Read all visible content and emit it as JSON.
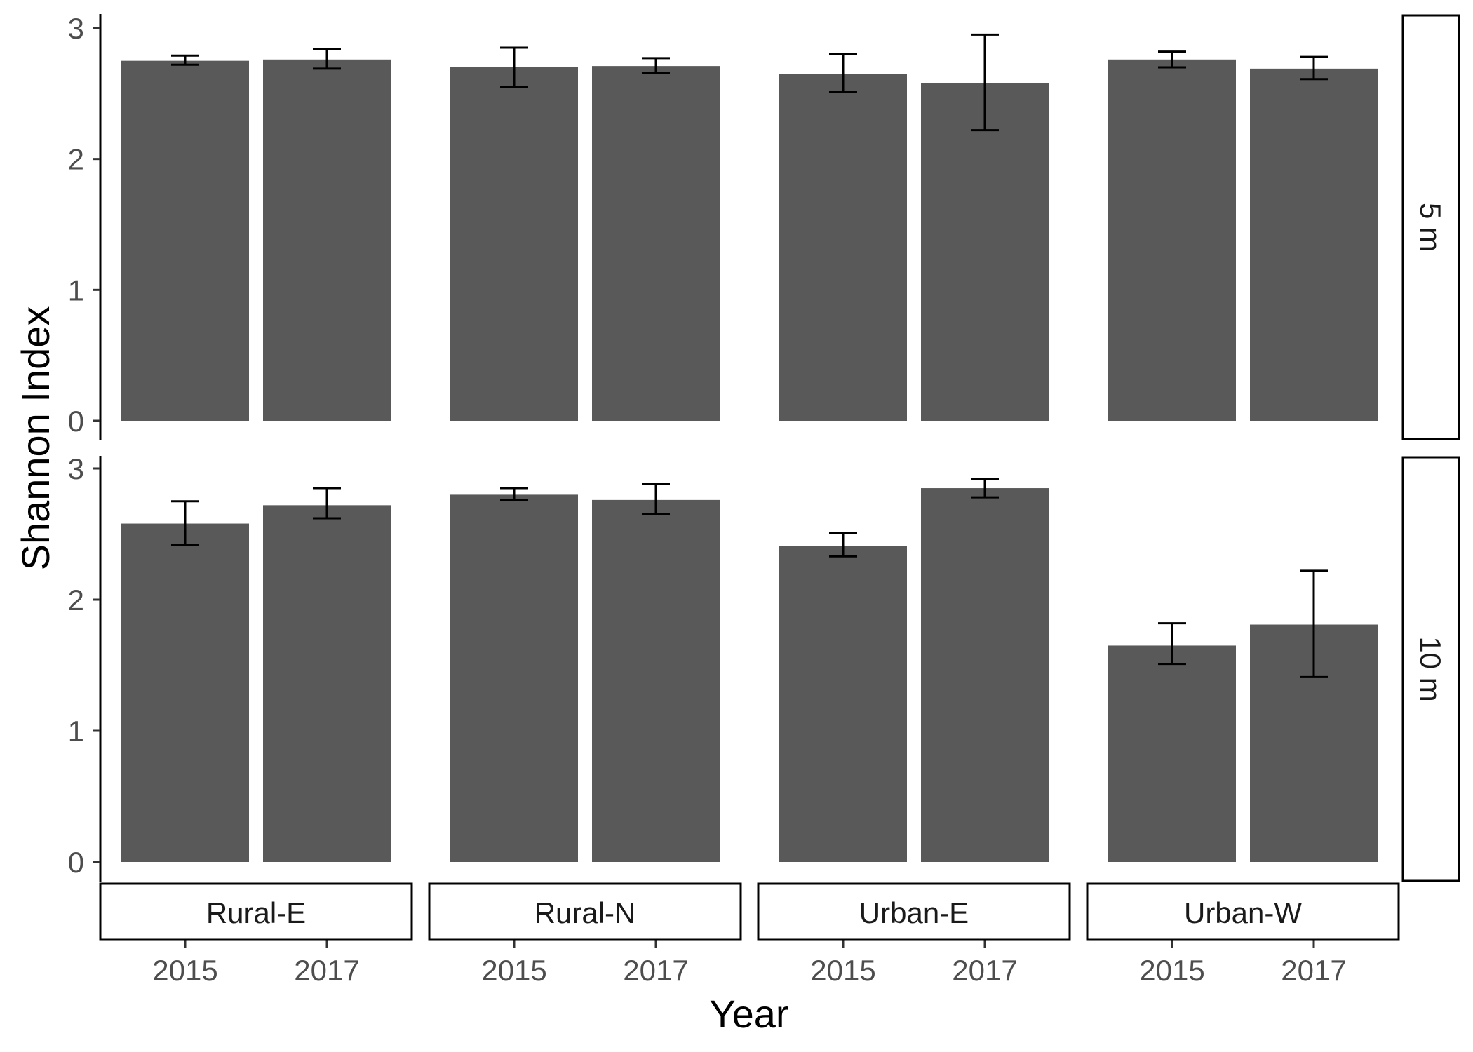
{
  "chart_data": {
    "type": "bar",
    "xlabel": "Year",
    "ylabel": "Shannon Index",
    "ylim": [
      0,
      3
    ],
    "yticks": [
      "0",
      "1",
      "2",
      "3"
    ],
    "grid": false,
    "facets": {
      "columns": [
        "Rural-E",
        "Rural-N",
        "Urban-E",
        "Urban-W"
      ],
      "rows": [
        "5 m",
        "10 m"
      ]
    },
    "categories": [
      "2015",
      "2017"
    ],
    "bar_color": "#595959",
    "error_bar_color": "#000000",
    "panels": [
      {
        "row": "5 m",
        "col": "Rural-E",
        "values": [
          2.75,
          2.76
        ],
        "error_low": [
          2.72,
          2.69
        ],
        "error_high": [
          2.79,
          2.84
        ]
      },
      {
        "row": "5 m",
        "col": "Rural-N",
        "values": [
          2.7,
          2.71
        ],
        "error_low": [
          2.55,
          2.66
        ],
        "error_high": [
          2.85,
          2.77
        ]
      },
      {
        "row": "5 m",
        "col": "Urban-E",
        "values": [
          2.65,
          2.58
        ],
        "error_low": [
          2.51,
          2.22
        ],
        "error_high": [
          2.8,
          2.95
        ]
      },
      {
        "row": "5 m",
        "col": "Urban-W",
        "values": [
          2.76,
          2.69
        ],
        "error_low": [
          2.7,
          2.61
        ],
        "error_high": [
          2.82,
          2.78
        ]
      },
      {
        "row": "10 m",
        "col": "Rural-E",
        "values": [
          2.58,
          2.72
        ],
        "error_low": [
          2.42,
          2.62
        ],
        "error_high": [
          2.75,
          2.85
        ]
      },
      {
        "row": "10 m",
        "col": "Rural-N",
        "values": [
          2.8,
          2.76
        ],
        "error_low": [
          2.76,
          2.65
        ],
        "error_high": [
          2.85,
          2.88
        ]
      },
      {
        "row": "10 m",
        "col": "Urban-E",
        "values": [
          2.41,
          2.85
        ],
        "error_low": [
          2.33,
          2.78
        ],
        "error_high": [
          2.51,
          2.92
        ]
      },
      {
        "row": "10 m",
        "col": "Urban-W",
        "values": [
          1.65,
          1.81
        ],
        "error_low": [
          1.51,
          1.41
        ],
        "error_high": [
          1.82,
          2.22
        ]
      }
    ]
  }
}
